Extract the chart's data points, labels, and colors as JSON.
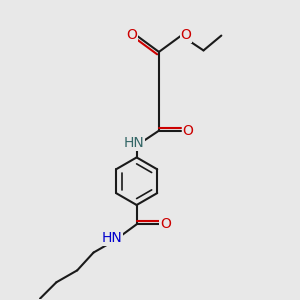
{
  "bg_color": "#e8e8e8",
  "bond_color": "#1a1a1a",
  "O_color": "#cc0000",
  "N_upper_color": "#336666",
  "N_lower_color": "#0000cc",
  "font_size": 9,
  "figsize": [
    3.0,
    3.0
  ],
  "dpi": 100,
  "xlim": [
    0,
    10
  ],
  "ylim": [
    0,
    10
  ]
}
